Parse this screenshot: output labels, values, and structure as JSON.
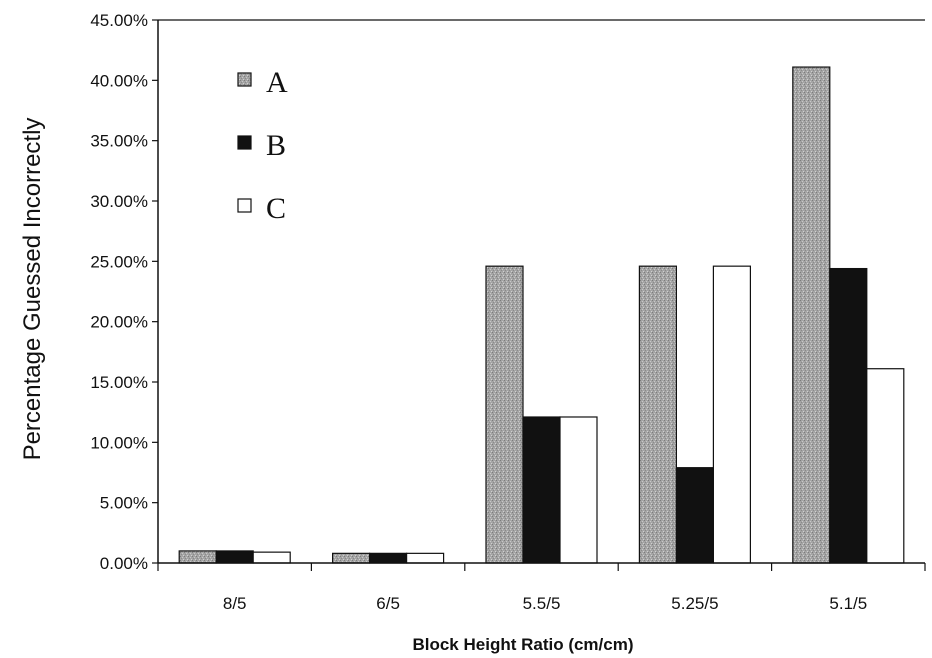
{
  "chart_data": {
    "type": "bar",
    "title": "",
    "xlabel": "Block Height Ratio (cm/cm)",
    "ylabel": "Percentage Guessed Incorrectly",
    "categories": [
      "8/5",
      "6/5",
      "5.5/5",
      "5.25/5",
      "5.1/5"
    ],
    "series": [
      {
        "name": "A",
        "values": [
          1.0,
          0.8,
          24.6,
          24.6,
          41.1
        ],
        "color": "#a8a8a8"
      },
      {
        "name": "B",
        "values": [
          1.0,
          0.8,
          12.1,
          7.9,
          24.4
        ],
        "color": "#111111"
      },
      {
        "name": "C",
        "values": [
          0.9,
          0.8,
          12.1,
          24.6,
          16.1
        ],
        "color": "#ffffff"
      }
    ],
    "ylim": [
      0,
      45
    ],
    "yticks": [
      0,
      5,
      10,
      15,
      20,
      25,
      30,
      35,
      40,
      45
    ],
    "ytick_labels": [
      "0.00%",
      "5.00%",
      "10.00%",
      "15.00%",
      "20.00%",
      "25.00%",
      "30.00%",
      "35.00%",
      "40.00%",
      "45.00%"
    ],
    "grid": false,
    "legend": {
      "position": "top-left",
      "entries": [
        "A",
        "B",
        "C"
      ]
    }
  }
}
